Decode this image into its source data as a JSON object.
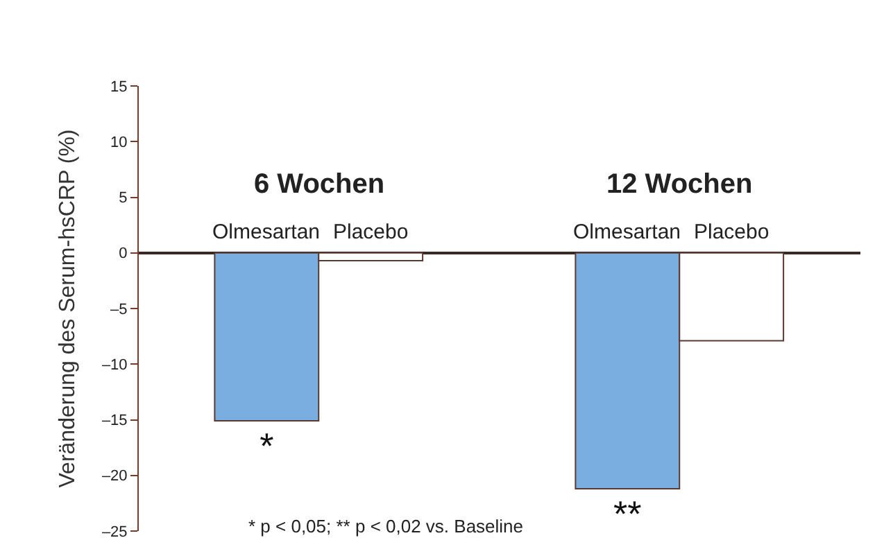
{
  "chart_data": {
    "type": "bar",
    "ylabel": "Veränderung des Serum-hsCRP (%)",
    "categories": [
      "Olmesartan",
      "Placebo",
      "Olmesartan",
      "Placebo"
    ],
    "values": [
      -15.1,
      -0.7,
      -21.2,
      -7.9
    ],
    "colors": [
      "#7aaee0",
      "#ffffff",
      "#7aaee0",
      "#ffffff"
    ],
    "value_labels": [
      "*",
      null,
      "**",
      null
    ],
    "ylim": [
      -25,
      15
    ],
    "yticks": [
      {
        "value": -25,
        "label": "–25"
      },
      {
        "value": -20,
        "label": "–20"
      },
      {
        "value": -15,
        "label": "–15"
      },
      {
        "value": -10,
        "label": "–10"
      },
      {
        "value": -5,
        "label": "–5"
      },
      0,
      5,
      10,
      15
    ],
    "annotations": [
      "6 Wochen",
      "12 Wochen",
      "* p < 0,05; ** p < 0,02 vs. Baseline"
    ],
    "legend": false
  }
}
